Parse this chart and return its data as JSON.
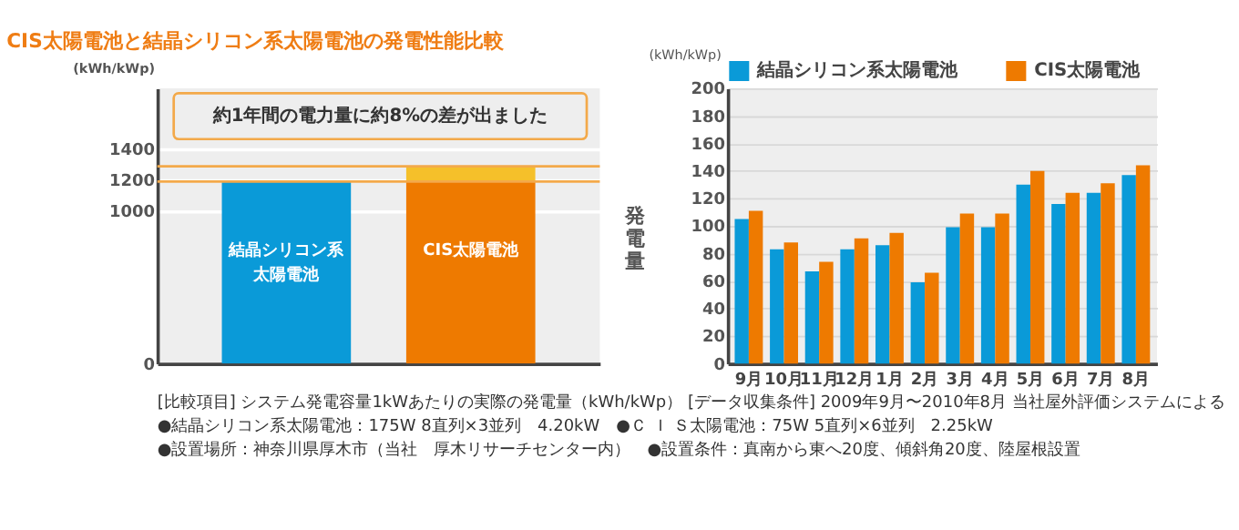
{
  "chart_data": [
    {
      "type": "bar",
      "title": "CIS太陽電池と結晶シリコン系太陽電池の発電性能比較",
      "ylabel": "(kWh/kWp)",
      "tick_labels": "y",
      "grid": "y",
      "stacked": true,
      "categories": [
        "結晶シリコン系太陽電池",
        "CIS太陽電池"
      ],
      "series": [
        {
          "colors": [
            "#0a9ad8",
            "#ee7a00"
          ],
          "values": [
            1190,
            1190
          ]
        },
        {
          "color": "#f5c02a",
          "values": [
            null,
            100
          ]
        }
      ],
      "ylim": [
        0,
        1800
      ],
      "yticks": [
        0,
        1000,
        1200,
        1400
      ],
      "ref_lines": [
        {
          "axis": "y",
          "value": 1190,
          "color": "#f3a94a"
        },
        {
          "axis": "y",
          "value": 1290,
          "color": "#f3a94a"
        }
      ],
      "annotations": [
        "約1年間の電力量に約8%の差が出ました",
        "[比較項目] システム発電容量1kWあたりの実際の発電量（kWh/kWp） [データ収集条件] 2009年9月〜2010年8月 当社屋外評価システムによる",
        "●結晶シリコン系太陽電池：175W 8直列×3並列　4.20kW　●Ｃ Ｉ Ｓ太陽電池：75W 5直列×6並列　2.25kW",
        "●設置場所：神奈川県厚木市（当社　厚木リサーチセンター内）　●設置条件：真南から東へ20度、傾斜角20度、陸屋根設置"
      ]
    },
    {
      "type": "bar",
      "ylabel": "発電量",
      "legend": "top",
      "grid": "y",
      "categories": [
        "9月",
        "10月",
        "11月",
        "12月",
        "1月",
        "2月",
        "3月",
        "4月",
        "5月",
        "6月",
        "7月",
        "8月"
      ],
      "series": [
        {
          "name": "結晶シリコン系太陽電池",
          "color": "#0a9ad8",
          "values": [
            105,
            83,
            67,
            83,
            86,
            59,
            99,
            99,
            130,
            116,
            124,
            137
          ]
        },
        {
          "name": "CIS太陽電池",
          "color": "#ee7a00",
          "values": [
            111,
            88,
            74,
            91,
            95,
            66,
            109,
            109,
            140,
            124,
            131,
            144
          ]
        }
      ],
      "ylim": [
        0,
        200
      ],
      "yticks": [
        0,
        20,
        40,
        60,
        80,
        100,
        120,
        140,
        160,
        180,
        200
      ],
      "annotations": [
        "(kWh/kWp)"
      ]
    }
  ]
}
